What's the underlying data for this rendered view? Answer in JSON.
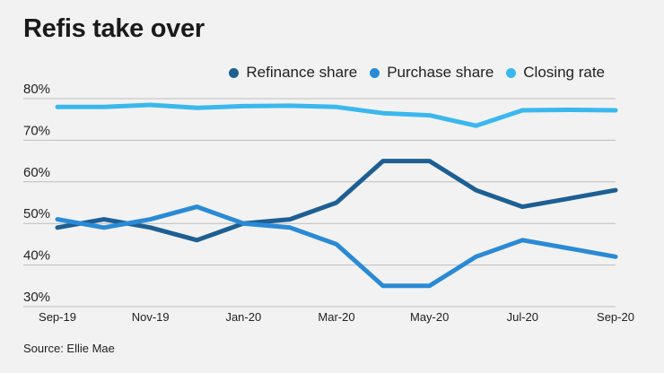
{
  "title": "Refis take over",
  "source": "Source: Ellie Mae",
  "chart_data": {
    "type": "line",
    "title": "Refis take over",
    "xlabel": "",
    "ylabel": "",
    "ylim": [
      30,
      80
    ],
    "yticks": [
      30,
      40,
      50,
      60,
      70,
      80
    ],
    "ytick_labels": [
      "30%",
      "40%",
      "50%",
      "60%",
      "70%",
      "80%"
    ],
    "grid": true,
    "legend_position": "top-right",
    "x": [
      "Sep-19",
      "Oct-19",
      "Nov-19",
      "Dec-19",
      "Jan-20",
      "Feb-20",
      "Mar-20",
      "Apr-20",
      "May-20",
      "Jun-20",
      "Jul-20",
      "Aug-20",
      "Sep-20"
    ],
    "xtick_labels": [
      "Sep-19",
      "Nov-19",
      "Jan-20",
      "Mar-20",
      "May-20",
      "Jul-20",
      "Sep-20"
    ],
    "series": [
      {
        "name": "Refinance share",
        "color": "#1d5f93",
        "values": [
          49,
          51,
          49,
          46,
          50,
          51,
          55,
          65,
          65,
          58,
          54,
          56,
          58
        ]
      },
      {
        "name": "Purchase share",
        "color": "#2a8ad6",
        "values": [
          51,
          49,
          51,
          54,
          50,
          49,
          45,
          35,
          35,
          42,
          46,
          44,
          42
        ]
      },
      {
        "name": "Closing rate",
        "color": "#3ab8ee",
        "values": [
          78,
          78,
          78.5,
          77.8,
          78.2,
          78.3,
          78,
          76.5,
          76,
          73.5,
          77.2,
          77.3,
          77.2
        ]
      }
    ]
  }
}
